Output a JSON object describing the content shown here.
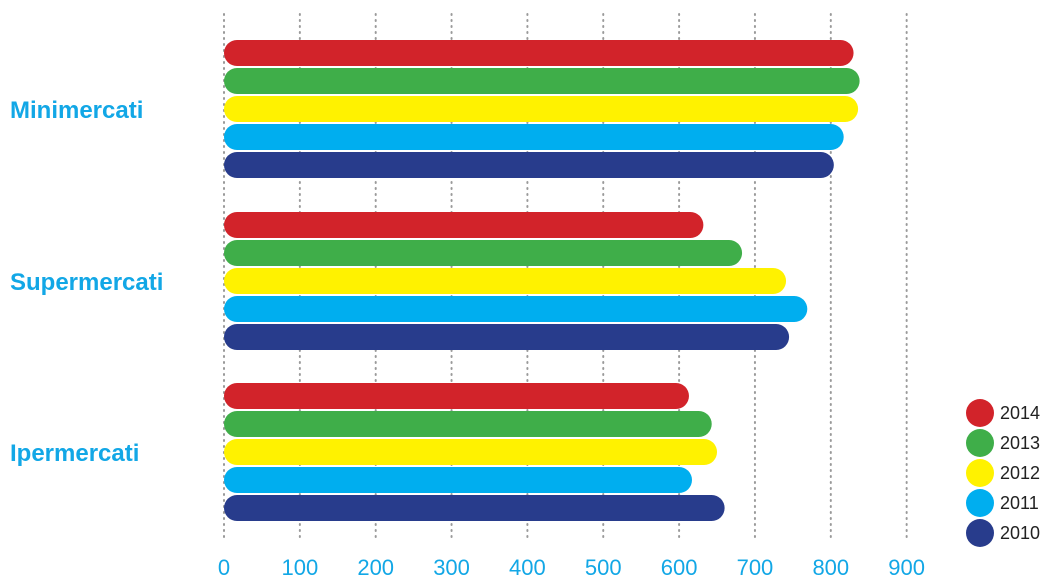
{
  "chart_data": {
    "type": "bar",
    "orientation": "horizontal",
    "title": "",
    "xlabel": "",
    "ylabel": "",
    "categories": [
      "Minimercati",
      "Supermercati",
      "Ipermercati"
    ],
    "xlim": [
      0,
      900
    ],
    "x_ticks": [
      "0",
      "100",
      "200",
      "300",
      "400",
      "500",
      "600",
      "700",
      "800",
      "900"
    ],
    "grid": "vertical dotted",
    "legend_position": "bottom-right",
    "series": [
      {
        "name": "2014",
        "color": "#d2232a",
        "values": [
          830,
          632,
          613
        ]
      },
      {
        "name": "2013",
        "color": "#3fae49",
        "values": [
          838,
          683,
          643
        ]
      },
      {
        "name": "2012",
        "color": "#fff200",
        "values": [
          836,
          741,
          650
        ]
      },
      {
        "name": "2011",
        "color": "#00aeef",
        "values": [
          817,
          769,
          617
        ]
      },
      {
        "name": "2010",
        "color": "#283c8c",
        "values": [
          804,
          745,
          660
        ]
      }
    ]
  }
}
